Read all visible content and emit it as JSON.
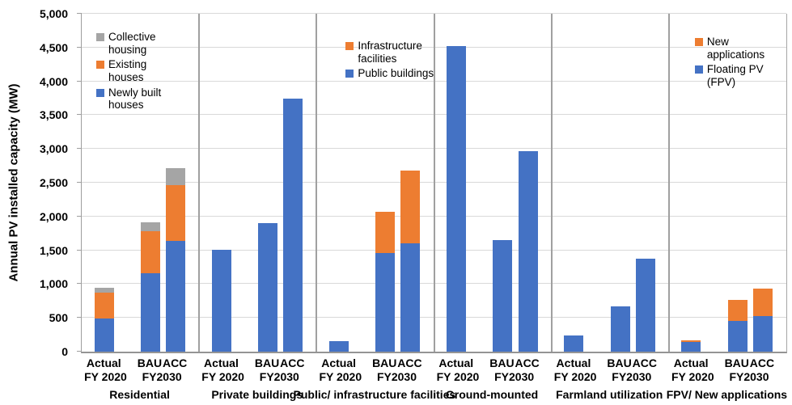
{
  "chart_data": {
    "type": "bar",
    "stacked": true,
    "ylabel": "Annual PV installed capacity (MW)",
    "ylim": [
      0,
      5000
    ],
    "ytick_interval": 500,
    "ytick_labels": [
      "0",
      "500",
      "1,000",
      "1,500",
      "2,000",
      "2,500",
      "3,000",
      "3,500",
      "4,000",
      "4,500",
      "5,000"
    ],
    "grid": true,
    "colors": {
      "blue": "#4472C4",
      "orange": "#ED7D31",
      "gray": "#A5A5A5"
    },
    "x_ticks": {
      "actual_line1": "Actual",
      "actual_line2": "FY 2020",
      "bau": "BAU",
      "acc": "ACC",
      "fy2030": "FY2030"
    },
    "panels": [
      {
        "category": "Residential",
        "legend": [
          {
            "label": "Collective housing",
            "color": "#A5A5A5"
          },
          {
            "label": "Existing houses",
            "color": "#ED7D31"
          },
          {
            "label": "Newly built houses",
            "color": "#4472C4"
          }
        ],
        "legend_class": "legend-res",
        "bars": [
          {
            "tick": "Actual FY 2020",
            "segments": [
              {
                "name": "Newly built houses",
                "value": 490,
                "color": "#4472C4"
              },
              {
                "name": "Existing houses",
                "value": 380,
                "color": "#ED7D31"
              },
              {
                "name": "Collective housing",
                "value": 70,
                "color": "#A5A5A5"
              }
            ]
          },
          {
            "tick": "BAU FY2030",
            "segments": [
              {
                "name": "Newly built houses",
                "value": 1160,
                "color": "#4472C4"
              },
              {
                "name": "Existing houses",
                "value": 620,
                "color": "#ED7D31"
              },
              {
                "name": "Collective housing",
                "value": 130,
                "color": "#A5A5A5"
              }
            ]
          },
          {
            "tick": "ACC FY2030",
            "segments": [
              {
                "name": "Newly built houses",
                "value": 1640,
                "color": "#4472C4"
              },
              {
                "name": "Existing houses",
                "value": 830,
                "color": "#ED7D31"
              },
              {
                "name": "Collective housing",
                "value": 250,
                "color": "#A5A5A5"
              }
            ]
          }
        ]
      },
      {
        "category": "Private buildings",
        "legend": null,
        "bars": [
          {
            "tick": "Actual FY 2020",
            "segments": [
              {
                "value": 1510,
                "color": "#4472C4"
              }
            ]
          },
          {
            "tick": "BAU FY2030",
            "segments": [
              {
                "value": 1900,
                "color": "#4472C4"
              }
            ]
          },
          {
            "tick": "ACC FY2030",
            "segments": [
              {
                "value": 3750,
                "color": "#4472C4"
              }
            ]
          }
        ]
      },
      {
        "category": "Public/ infrastructure facilities",
        "legend": [
          {
            "label": "Infrastructure facilities",
            "color": "#ED7D31"
          },
          {
            "label": "Public buildings",
            "color": "#4472C4"
          }
        ],
        "legend_class": "legend-pub",
        "bars": [
          {
            "tick": "Actual FY 2020",
            "segments": [
              {
                "name": "Public buildings",
                "value": 160,
                "color": "#4472C4"
              }
            ]
          },
          {
            "tick": "BAU FY2030",
            "segments": [
              {
                "name": "Public buildings",
                "value": 1460,
                "color": "#4472C4"
              },
              {
                "name": "Infrastructure facilities",
                "value": 610,
                "color": "#ED7D31"
              }
            ]
          },
          {
            "tick": "ACC FY2030",
            "segments": [
              {
                "name": "Public buildings",
                "value": 1600,
                "color": "#4472C4"
              },
              {
                "name": "Infrastructure facilities",
                "value": 1080,
                "color": "#ED7D31"
              }
            ]
          }
        ]
      },
      {
        "category": "Ground-mounted",
        "legend": null,
        "bars": [
          {
            "tick": "Actual FY 2020",
            "segments": [
              {
                "value": 4520,
                "color": "#4472C4"
              }
            ]
          },
          {
            "tick": "BAU FY2030",
            "segments": [
              {
                "value": 1650,
                "color": "#4472C4"
              }
            ]
          },
          {
            "tick": "ACC FY2030",
            "segments": [
              {
                "value": 2970,
                "color": "#4472C4"
              }
            ]
          }
        ]
      },
      {
        "category": "Farmland utilization",
        "legend": null,
        "bars": [
          {
            "tick": "Actual FY 2020",
            "segments": [
              {
                "value": 240,
                "color": "#4472C4"
              }
            ]
          },
          {
            "tick": "BAU FY2030",
            "segments": [
              {
                "value": 670,
                "color": "#4472C4"
              }
            ]
          },
          {
            "tick": "ACC FY2030",
            "segments": [
              {
                "value": 1370,
                "color": "#4472C4"
              }
            ]
          }
        ]
      },
      {
        "category": "FPV/ New applications",
        "legend": [
          {
            "label": "New applications",
            "color": "#ED7D31"
          },
          {
            "label": "Floating PV (FPV)",
            "color": "#4472C4"
          }
        ],
        "legend_class": "legend-fpv",
        "bars": [
          {
            "tick": "Actual FY 2020",
            "segments": [
              {
                "name": "Floating PV (FPV)",
                "value": 140,
                "color": "#4472C4"
              },
              {
                "name": "New applications",
                "value": 25,
                "color": "#ED7D31"
              }
            ]
          },
          {
            "tick": "BAU FY2030",
            "segments": [
              {
                "name": "Floating PV (FPV)",
                "value": 460,
                "color": "#4472C4"
              },
              {
                "name": "New applications",
                "value": 310,
                "color": "#ED7D31"
              }
            ]
          },
          {
            "tick": "ACC FY2030",
            "segments": [
              {
                "name": "Floating PV (FPV)",
                "value": 530,
                "color": "#4472C4"
              },
              {
                "name": "New applications",
                "value": 400,
                "color": "#ED7D31"
              }
            ]
          }
        ]
      }
    ]
  }
}
